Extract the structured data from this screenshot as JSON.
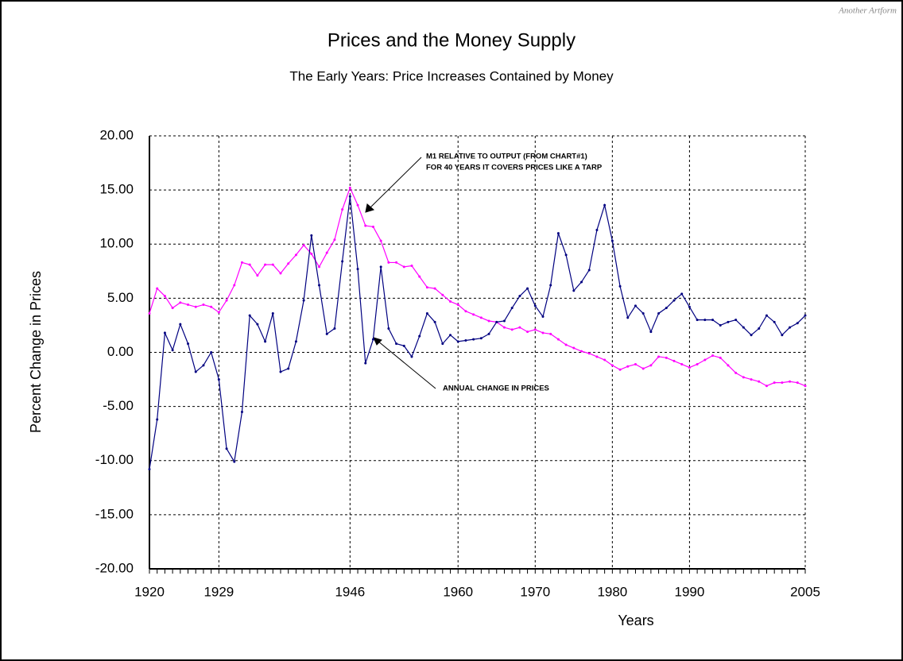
{
  "chart_data": {
    "type": "line",
    "title": "Prices and the Money Supply",
    "subtitle": "The Early Years: Price Increases Contained by Money",
    "credit": "Another Artform",
    "x_label": "Years",
    "y_label": "Percent Change in Prices",
    "x": [
      1920,
      1921,
      1922,
      1923,
      1924,
      1925,
      1926,
      1927,
      1928,
      1929,
      1930,
      1931,
      1932,
      1933,
      1934,
      1935,
      1936,
      1937,
      1938,
      1939,
      1940,
      1941,
      1942,
      1943,
      1944,
      1945,
      1946,
      1947,
      1948,
      1949,
      1950,
      1951,
      1952,
      1953,
      1954,
      1955,
      1956,
      1957,
      1958,
      1959,
      1960,
      1961,
      1962,
      1963,
      1964,
      1965,
      1966,
      1967,
      1968,
      1969,
      1970,
      1971,
      1972,
      1973,
      1974,
      1975,
      1976,
      1977,
      1978,
      1979,
      1980,
      1981,
      1982,
      1983,
      1984,
      1985,
      1986,
      1987,
      1988,
      1989,
      1990,
      1991,
      1992,
      1993,
      1994,
      1995,
      1996,
      1997,
      1998,
      1999,
      2000,
      2001,
      2002,
      2003,
      2004,
      2005
    ],
    "series": [
      {
        "name": "M1 relative to output",
        "color": "#ff00ff",
        "values": [
          3.6,
          5.9,
          5.2,
          4.1,
          4.6,
          4.4,
          4.2,
          4.4,
          4.2,
          3.7,
          4.8,
          6.2,
          8.3,
          8.1,
          7.1,
          8.1,
          8.1,
          7.3,
          8.2,
          9.0,
          9.9,
          9.1,
          7.9,
          9.2,
          10.4,
          13.2,
          15.2,
          13.6,
          11.7,
          11.6,
          10.3,
          8.3,
          8.3,
          7.9,
          8.0,
          7.0,
          6.0,
          5.9,
          5.3,
          4.7,
          4.4,
          3.8,
          3.5,
          3.2,
          2.9,
          2.8,
          2.3,
          2.1,
          2.3,
          1.9,
          2.1,
          1.8,
          1.7,
          1.2,
          0.7,
          0.4,
          0.1,
          -0.1,
          -0.4,
          -0.7,
          -1.2,
          -1.6,
          -1.3,
          -1.1,
          -1.5,
          -1.2,
          -0.4,
          -0.5,
          -0.8,
          -1.1,
          -1.4,
          -1.1,
          -0.7,
          -0.3,
          -0.5,
          -1.2,
          -1.9,
          -2.3,
          -2.5,
          -2.7,
          -3.1,
          -2.8,
          -2.8,
          -2.7,
          -2.8,
          -3.1
        ]
      },
      {
        "name": "Annual change in prices",
        "color": "#000080",
        "values": [
          -10.8,
          -6.2,
          1.8,
          0.2,
          2.6,
          0.8,
          -1.8,
          -1.2,
          0.0,
          -2.5,
          -8.9,
          -10.1,
          -5.5,
          3.4,
          2.6,
          1.0,
          3.6,
          -1.8,
          -1.5,
          1.0,
          4.8,
          10.8,
          6.2,
          1.7,
          2.2,
          8.4,
          14.4,
          7.7,
          -1.0,
          1.2,
          7.9,
          2.2,
          0.8,
          0.6,
          -0.4,
          1.5,
          3.6,
          2.8,
          0.8,
          1.6,
          1.0,
          1.1,
          1.2,
          1.3,
          1.7,
          2.8,
          2.9,
          4.1,
          5.2,
          5.9,
          4.3,
          3.3,
          6.2,
          11.0,
          9.0,
          5.7,
          6.5,
          7.6,
          11.3,
          13.6,
          10.3,
          6.1,
          3.2,
          4.3,
          3.6,
          1.9,
          3.6,
          4.1,
          4.8,
          5.4,
          4.2,
          3.0,
          3.0,
          3.0,
          2.5,
          2.8,
          3.0,
          2.3,
          1.6,
          2.2,
          3.4,
          2.8,
          1.6,
          2.3,
          2.7,
          3.4
        ]
      }
    ],
    "annotations": [
      {
        "lines": [
          "M1 RELATIVE TO OUTPUT (FROM CHART#1)",
          "FOR 40 YEARS IT COVERS PRICES LIKE A TARP"
        ]
      },
      {
        "lines": [
          "ANNUAL CHANGE IN PRICES"
        ]
      }
    ],
    "xlim": [
      1920,
      2005
    ],
    "xticks": [
      1920,
      1929,
      1946,
      1960,
      1970,
      1980,
      1990,
      2005
    ],
    "ylim": [
      -20,
      20
    ],
    "yticks": [
      {
        "value": -20,
        "label": "-20.00"
      },
      {
        "value": -15,
        "label": "-15.00"
      },
      {
        "value": -10,
        "label": "-10.00"
      },
      {
        "value": -5,
        "label": "-5.00"
      },
      {
        "value": 0,
        "label": "0.00"
      },
      {
        "value": 5,
        "label": "5.00"
      },
      {
        "value": 10,
        "label": "10.00"
      },
      {
        "value": 15,
        "label": "15.00"
      },
      {
        "value": 20,
        "label": "20.00"
      }
    ],
    "grid": true
  }
}
